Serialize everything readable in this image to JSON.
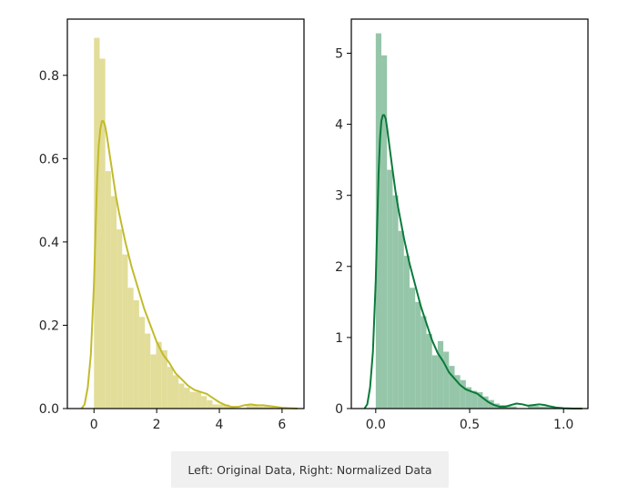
{
  "caption": "Left: Original Data, Right: Normalized Data",
  "colors": {
    "left_line": "#c2bb2b",
    "left_fill": "#e2dd99",
    "right_line": "#0a7a3a",
    "right_fill": "#96c6a9",
    "axis": "#000000"
  },
  "chart_data": [
    {
      "type": "bar",
      "title": "Original Data",
      "xlabel": "",
      "ylabel": "",
      "xlim": [
        -0.85,
        6.7
      ],
      "ylim": [
        0,
        0.935
      ],
      "xticks": [
        {
          "value": 0,
          "label": "0"
        },
        {
          "value": 2,
          "label": "2"
        },
        {
          "value": 4,
          "label": "4"
        },
        {
          "value": 6,
          "label": "6"
        }
      ],
      "yticks": [
        {
          "value": 0,
          "label": "0.0"
        },
        {
          "value": 0.2,
          "label": "0.2"
        },
        {
          "value": 0.4,
          "label": "0.4"
        },
        {
          "value": 0.6,
          "label": "0.6"
        },
        {
          "value": 0.8,
          "label": "0.8"
        }
      ],
      "histogram": {
        "bin_start": 0,
        "bin_width": 0.18,
        "values": [
          0.89,
          0.84,
          0.57,
          0.51,
          0.43,
          0.37,
          0.29,
          0.26,
          0.22,
          0.18,
          0.13,
          0.16,
          0.14,
          0.1,
          0.08,
          0.06,
          0.05,
          0.04,
          0.04,
          0.03,
          0.02,
          0.01,
          0.01,
          0.01,
          0.005,
          0.0,
          0.0,
          0.01,
          0.01,
          0.005,
          0.005,
          0.005,
          0.0,
          0.0,
          0.0
        ]
      },
      "kde": {
        "x": [
          -0.4,
          -0.3,
          -0.2,
          -0.1,
          0.0,
          0.05,
          0.1,
          0.15,
          0.2,
          0.25,
          0.3,
          0.35,
          0.4,
          0.5,
          0.6,
          0.7,
          0.8,
          1.0,
          1.2,
          1.4,
          1.6,
          1.8,
          2.0,
          2.2,
          2.4,
          2.6,
          2.8,
          3.0,
          3.2,
          3.4,
          3.6,
          3.8,
          4.0,
          4.2,
          4.4,
          4.6,
          4.8,
          5.0,
          5.2,
          5.4,
          5.6,
          5.8,
          6.0,
          6.2,
          6.5
        ],
        "y": [
          0.0,
          0.01,
          0.05,
          0.13,
          0.3,
          0.43,
          0.55,
          0.63,
          0.67,
          0.69,
          0.69,
          0.68,
          0.66,
          0.61,
          0.56,
          0.51,
          0.47,
          0.4,
          0.34,
          0.29,
          0.24,
          0.2,
          0.16,
          0.13,
          0.11,
          0.085,
          0.07,
          0.055,
          0.045,
          0.04,
          0.035,
          0.025,
          0.015,
          0.008,
          0.004,
          0.004,
          0.008,
          0.01,
          0.008,
          0.008,
          0.006,
          0.004,
          0.002,
          0.001,
          0.0
        ]
      }
    },
    {
      "type": "bar",
      "title": "Normalized Data",
      "xlabel": "",
      "ylabel": "",
      "xlim": [
        -0.13,
        1.13
      ],
      "ylim": [
        0,
        5.48
      ],
      "xticks": [
        {
          "value": 0,
          "label": "0.0"
        },
        {
          "value": 0.5,
          "label": "0.5"
        },
        {
          "value": 1.0,
          "label": "1.0"
        }
      ],
      "yticks": [
        {
          "value": 0,
          "label": "0"
        },
        {
          "value": 1,
          "label": "1"
        },
        {
          "value": 2,
          "label": "2"
        },
        {
          "value": 3,
          "label": "3"
        },
        {
          "value": 4,
          "label": "4"
        },
        {
          "value": 5,
          "label": "5"
        }
      ],
      "histogram": {
        "bin_start": 0,
        "bin_width": 0.03,
        "values": [
          5.28,
          4.97,
          3.36,
          3.0,
          2.5,
          2.15,
          1.7,
          1.5,
          1.3,
          1.05,
          0.75,
          0.95,
          0.8,
          0.6,
          0.47,
          0.4,
          0.3,
          0.25,
          0.23,
          0.17,
          0.12,
          0.07,
          0.05,
          0.05,
          0.03,
          0.0,
          0.0,
          0.05,
          0.04,
          0.03,
          0.03,
          0.02,
          0.0,
          0.0,
          0.0
        ]
      },
      "kde": {
        "x": [
          -0.06,
          -0.045,
          -0.03,
          -0.015,
          0.0,
          0.008,
          0.015,
          0.023,
          0.03,
          0.038,
          0.045,
          0.053,
          0.06,
          0.075,
          0.09,
          0.105,
          0.12,
          0.15,
          0.18,
          0.21,
          0.24,
          0.27,
          0.3,
          0.33,
          0.36,
          0.39,
          0.42,
          0.45,
          0.48,
          0.51,
          0.54,
          0.57,
          0.6,
          0.63,
          0.66,
          0.69,
          0.72,
          0.75,
          0.78,
          0.81,
          0.84,
          0.87,
          0.9,
          0.93,
          0.96,
          1.0,
          1.05,
          1.1
        ],
        "y": [
          0.0,
          0.06,
          0.3,
          0.8,
          1.8,
          2.6,
          3.3,
          3.8,
          4.05,
          4.13,
          4.13,
          4.08,
          3.96,
          3.65,
          3.35,
          3.06,
          2.82,
          2.4,
          2.04,
          1.74,
          1.44,
          1.2,
          0.96,
          0.78,
          0.66,
          0.51,
          0.42,
          0.33,
          0.27,
          0.24,
          0.21,
          0.15,
          0.09,
          0.05,
          0.025,
          0.025,
          0.05,
          0.07,
          0.06,
          0.04,
          0.05,
          0.06,
          0.05,
          0.03,
          0.015,
          0.005,
          0.0,
          0.0
        ]
      }
    }
  ]
}
